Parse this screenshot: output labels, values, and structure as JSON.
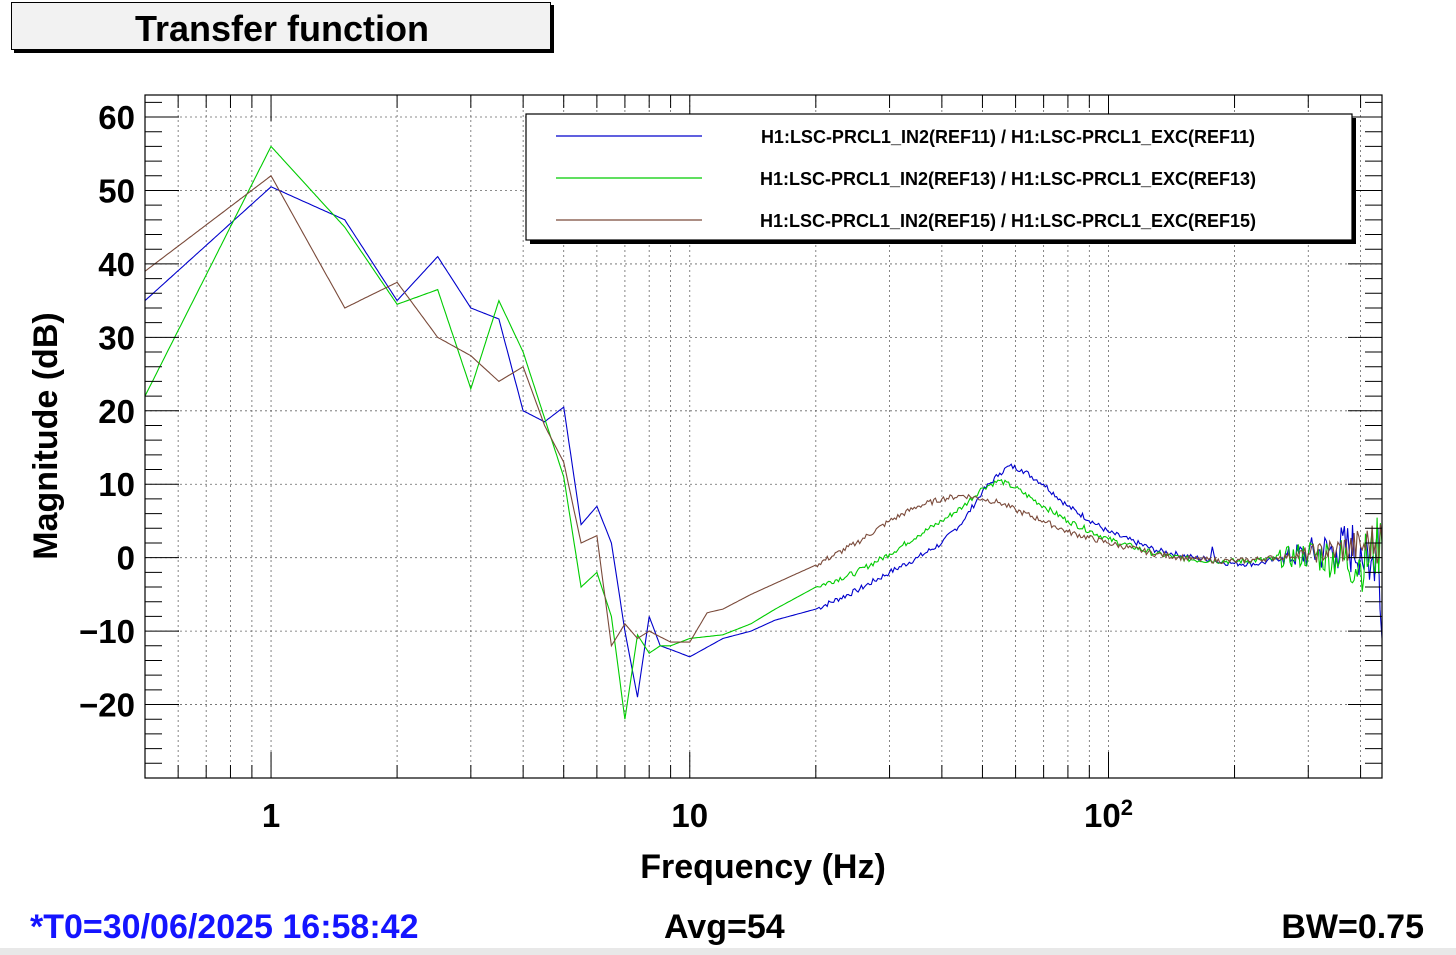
{
  "title": "Transfer function",
  "footer": {
    "t0": "*T0=30/06/2025 16:58:42",
    "avg": "Avg=54",
    "bw": "BW=0.75"
  },
  "colors": {
    "accent_blue": "#1414ff",
    "series_blue": "#0000cc",
    "series_green": "#00cc00",
    "series_brown": "#7a4a3a"
  },
  "chart_data": {
    "type": "line",
    "title": "Transfer function",
    "xlabel": "Frequency (Hz)",
    "ylabel": "Magnitude (dB)",
    "xscale": "log",
    "xlim": [
      0.5,
      450
    ],
    "ylim": [
      -30,
      63
    ],
    "grid": true,
    "legend_position": "top-right",
    "x_tick_labels": [
      {
        "value": 1,
        "label": "1"
      },
      {
        "value": 10,
        "label": "10"
      },
      {
        "value": 100,
        "label": "10",
        "exponent": "2"
      }
    ],
    "y_tick_labels": [
      {
        "value": 60,
        "label": "60"
      },
      {
        "value": 50,
        "label": "50"
      },
      {
        "value": 40,
        "label": "40"
      },
      {
        "value": 30,
        "label": "30"
      },
      {
        "value": 20,
        "label": "20"
      },
      {
        "value": 10,
        "label": "10"
      },
      {
        "value": 0,
        "label": "0"
      },
      {
        "value": -10,
        "label": "−10"
      },
      {
        "value": -20,
        "label": "−20"
      }
    ],
    "series": [
      {
        "name": "H1:LSC-PRCL1_IN2(REF11) / H1:LSC-PRCL1_EXC(REF11)",
        "color": "#0000cc",
        "points": [
          [
            0.5,
            35
          ],
          [
            1,
            50.5
          ],
          [
            1.5,
            46
          ],
          [
            2,
            35
          ],
          [
            2.5,
            41
          ],
          [
            3,
            34
          ],
          [
            3.5,
            32.5
          ],
          [
            4,
            20
          ],
          [
            4.5,
            18.5
          ],
          [
            5,
            20.5
          ],
          [
            5.5,
            4.5
          ],
          [
            6,
            7
          ],
          [
            6.5,
            2
          ],
          [
            7,
            -10
          ],
          [
            7.5,
            -19
          ],
          [
            8,
            -8
          ],
          [
            8.5,
            -12
          ],
          [
            9,
            -12.5
          ],
          [
            10,
            -13.5
          ],
          [
            12,
            -11
          ],
          [
            14,
            -10
          ],
          [
            16,
            -8.5
          ],
          [
            20,
            -7
          ],
          [
            25,
            -4.5
          ],
          [
            30,
            -2
          ],
          [
            35,
            0
          ],
          [
            40,
            2
          ],
          [
            45,
            5
          ],
          [
            50,
            9
          ],
          [
            55,
            11.5
          ],
          [
            58,
            12.5
          ],
          [
            62,
            12
          ],
          [
            70,
            10
          ],
          [
            80,
            7
          ],
          [
            100,
            3.5
          ],
          [
            130,
            1
          ],
          [
            160,
            0
          ],
          [
            175,
            -0.2
          ],
          [
            177,
            1.5
          ],
          [
            180,
            -0.5
          ],
          [
            200,
            -0.8
          ],
          [
            230,
            -0.8
          ],
          [
            260,
            0
          ],
          [
            300,
            0.5
          ],
          [
            350,
            1
          ],
          [
            400,
            1.5
          ],
          [
            420,
            -3
          ],
          [
            440,
            4
          ],
          [
            450,
            -11
          ]
        ],
        "noise_from": 260,
        "noise_amp": 4
      },
      {
        "name": "H1:LSC-PRCL1_IN2(REF13) / H1:LSC-PRCL1_EXC(REF13)",
        "color": "#00cc00",
        "points": [
          [
            0.5,
            22
          ],
          [
            1,
            56
          ],
          [
            1.5,
            45
          ],
          [
            2,
            34.5
          ],
          [
            2.5,
            36.5
          ],
          [
            3,
            23
          ],
          [
            3.5,
            35
          ],
          [
            4,
            28
          ],
          [
            4.5,
            19
          ],
          [
            5,
            11
          ],
          [
            5.5,
            -4
          ],
          [
            6,
            -2
          ],
          [
            6.5,
            -8
          ],
          [
            7,
            -22
          ],
          [
            7.5,
            -10.5
          ],
          [
            8,
            -13
          ],
          [
            8.5,
            -12
          ],
          [
            9,
            -12
          ],
          [
            10,
            -11
          ],
          [
            12,
            -10.5
          ],
          [
            14,
            -9
          ],
          [
            16,
            -7
          ],
          [
            20,
            -4
          ],
          [
            25,
            -2
          ],
          [
            30,
            0.5
          ],
          [
            35,
            3
          ],
          [
            40,
            5
          ],
          [
            45,
            7
          ],
          [
            50,
            9.5
          ],
          [
            55,
            10.5
          ],
          [
            60,
            9.5
          ],
          [
            70,
            7
          ],
          [
            80,
            5
          ],
          [
            100,
            2.5
          ],
          [
            130,
            0.5
          ],
          [
            160,
            -0.3
          ],
          [
            200,
            -0.5
          ],
          [
            250,
            -0.2
          ],
          [
            300,
            0.5
          ],
          [
            350,
            0
          ],
          [
            400,
            -1
          ],
          [
            450,
            2
          ]
        ],
        "noise_from": 250,
        "noise_amp": 3.5
      },
      {
        "name": "H1:LSC-PRCL1_IN2(REF15) / H1:LSC-PRCL1_EXC(REF15)",
        "color": "#7a4a3a",
        "points": [
          [
            0.5,
            39
          ],
          [
            1,
            52
          ],
          [
            1.5,
            34
          ],
          [
            2,
            37.5
          ],
          [
            2.5,
            30
          ],
          [
            3,
            27.5
          ],
          [
            3.5,
            24
          ],
          [
            4,
            26
          ],
          [
            4.5,
            18
          ],
          [
            5,
            13
          ],
          [
            5.5,
            2
          ],
          [
            6,
            3
          ],
          [
            6.5,
            -12
          ],
          [
            7,
            -9
          ],
          [
            7.5,
            -11
          ],
          [
            8,
            -10
          ],
          [
            9,
            -11.5
          ],
          [
            10,
            -11.5
          ],
          [
            11,
            -7.5
          ],
          [
            12,
            -7
          ],
          [
            14,
            -5
          ],
          [
            16,
            -3.5
          ],
          [
            20,
            -1
          ],
          [
            25,
            2
          ],
          [
            30,
            5
          ],
          [
            35,
            7
          ],
          [
            40,
            8
          ],
          [
            45,
            8.5
          ],
          [
            50,
            8
          ],
          [
            55,
            7.5
          ],
          [
            60,
            6.5
          ],
          [
            70,
            5
          ],
          [
            80,
            3.5
          ],
          [
            100,
            2
          ],
          [
            130,
            0.5
          ],
          [
            160,
            -0.2
          ],
          [
            200,
            -0.5
          ],
          [
            250,
            0
          ],
          [
            300,
            0.5
          ],
          [
            350,
            1
          ],
          [
            400,
            1.5
          ],
          [
            450,
            2.5
          ]
        ],
        "noise_from": 280,
        "noise_amp": 2.5
      }
    ]
  }
}
